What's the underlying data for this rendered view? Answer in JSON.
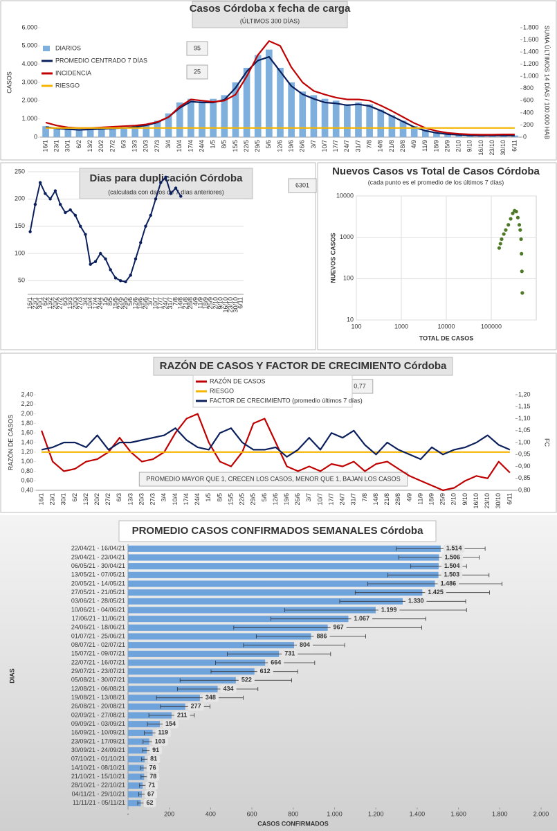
{
  "chart_data": [
    {
      "type": "combo",
      "title": "Casos Córdoba x fecha de carga",
      "subtitle": "(ÚLTIMOS 300 DÍAS)",
      "ylabel": "CASOS",
      "y2label": "SUMA ÚLTIMOS 14 DÍAS / 100.000 HAB",
      "annotations": [
        "95",
        "25"
      ],
      "grid": false,
      "categories": [
        "16/1",
        "23/1",
        "30/1",
        "6/2",
        "13/2",
        "20/2",
        "27/2",
        "6/3",
        "13/3",
        "20/3",
        "27/3",
        "3/4",
        "10/4",
        "17/4",
        "24/4",
        "1/5",
        "8/5",
        "15/5",
        "22/5",
        "29/5",
        "5/6",
        "12/6",
        "19/6",
        "26/6",
        "3/7",
        "10/7",
        "17/7",
        "24/7",
        "31/7",
        "7/8",
        "14/8",
        "21/8",
        "28/8",
        "4/9",
        "11/9",
        "18/9",
        "25/9",
        "2/10",
        "9/10",
        "16/10",
        "23/10",
        "30/10",
        "6/11"
      ],
      "ylim": [
        0,
        6000
      ],
      "yticks": [
        0,
        {
          "value": 1000,
          "label": "1.000"
        },
        {
          "value": 2000,
          "label": "2.000"
        },
        {
          "value": 3000,
          "label": "3.000"
        },
        {
          "value": 4000,
          "label": "4.000"
        },
        {
          "value": 5000,
          "label": "5.000"
        },
        {
          "value": 6000,
          "label": "6.000"
        }
      ],
      "y2lim": [
        0,
        1800
      ],
      "y2ticks": [
        0,
        200,
        400,
        600,
        800,
        {
          "value": 1000,
          "label": "1.000"
        },
        {
          "value": 1200,
          "label": "1.200"
        },
        {
          "value": 1400,
          "label": "1.400"
        },
        {
          "value": 1600,
          "label": "1.600"
        },
        {
          "value": 1800,
          "label": "1.800"
        }
      ],
      "series": [
        {
          "name": "DIARIOS",
          "type": "bar",
          "color": "#7fb0dd",
          "values": [
            600,
            500,
            450,
            400,
            450,
            500,
            500,
            550,
            600,
            700,
            900,
            1300,
            1900,
            2100,
            2000,
            2100,
            2300,
            3000,
            3800,
            4500,
            4800,
            3800,
            3000,
            2500,
            2300,
            2100,
            2000,
            1800,
            1900,
            1800,
            1500,
            1200,
            900,
            600,
            400,
            250,
            180,
            130,
            100,
            90,
            100,
            100,
            90
          ]
        },
        {
          "name": "PROMEDIO CENTRADO 7 DÍAS",
          "type": "line",
          "color": "#0b1f5c",
          "values": [
            550,
            480,
            430,
            400,
            420,
            450,
            480,
            500,
            550,
            650,
            800,
            1100,
            1600,
            1950,
            1900,
            1900,
            2050,
            2700,
            3600,
            4200,
            4400,
            3600,
            2800,
            2350,
            2100,
            1900,
            1850,
            1750,
            1800,
            1700,
            1450,
            1150,
            850,
            550,
            350,
            230,
            160,
            120,
            90,
            80,
            85,
            90,
            80
          ]
        },
        {
          "name": "INCIDENCIA",
          "type": "line",
          "axis": "y2",
          "color": "#c00000",
          "values": [
            240,
            190,
            160,
            150,
            150,
            160,
            170,
            180,
            190,
            210,
            250,
            330,
            500,
            620,
            600,
            580,
            600,
            700,
            1000,
            1350,
            1580,
            1500,
            1150,
            900,
            760,
            700,
            650,
            620,
            620,
            600,
            520,
            430,
            330,
            230,
            150,
            100,
            70,
            55,
            45,
            40,
            40,
            45,
            45
          ]
        },
        {
          "name": "RIESGO",
          "type": "line",
          "axis": "y2",
          "color": "#f4b400",
          "values": [
            150,
            150,
            150,
            150,
            150,
            150,
            150,
            150,
            150,
            150,
            150,
            150,
            150,
            150,
            150,
            150,
            150,
            150,
            150,
            150,
            150,
            150,
            150,
            150,
            150,
            150,
            150,
            150,
            150,
            150,
            150,
            150,
            150,
            150,
            150,
            150,
            150,
            150,
            150,
            150,
            150,
            150,
            150
          ]
        }
      ]
    },
    {
      "type": "line",
      "title": "Dias para duplicación Córdoba",
      "subtitle": "(calculada con datos de 7 días anteriores)",
      "annotations": [
        "6301"
      ],
      "grid": true,
      "categories": [
        "16/1",
        "23/1",
        "30/1",
        "6/2",
        "13/2",
        "20/2",
        "27/2",
        "6/3",
        "13/3",
        "20/3",
        "27/3",
        "3/4",
        "10/4",
        "17/4",
        "24/4",
        "1/5",
        "8/5",
        "15/5",
        "22/5",
        "29/5",
        "5/6",
        "12/6",
        "19/6",
        "26/6",
        "3/7",
        "10/7",
        "17/7",
        "24/7",
        "31/7",
        "7/8",
        "14/8",
        "21/8",
        "28/8",
        "4/9",
        "11/9",
        "18/9",
        "25/9",
        "2/10",
        "9/10",
        "16/10",
        "23/10",
        "30/10",
        "6/11"
      ],
      "ylim": [
        25,
        250
      ],
      "yticks": [
        50,
        100,
        150,
        200,
        250
      ],
      "series": [
        {
          "name": "DÍAS",
          "type": "line",
          "color": "#0b1f5c",
          "values": [
            140,
            190,
            230,
            210,
            200,
            215,
            190,
            175,
            180,
            170,
            150,
            135,
            80,
            85,
            100,
            90,
            70,
            55,
            50,
            48,
            60,
            90,
            120,
            150,
            170,
            200,
            230,
            240,
            210,
            220,
            205,
            null,
            null,
            null,
            null,
            null,
            null,
            null,
            null,
            null,
            null,
            null,
            null
          ]
        }
      ]
    },
    {
      "type": "scatter",
      "title": "Nuevos Casos vs Total de Casos Córdoba",
      "subtitle": "(cada punto es el promedio de los últimos 7 días)",
      "xlabel": "TOTAL DE CASOS",
      "ylabel": "NUEVOS CASOS",
      "log": true,
      "grid": true,
      "color": "#4e7a27",
      "xlim": [
        100,
        1000000
      ],
      "xticks": [
        100,
        1000,
        10000,
        100000
      ],
      "ylim": [
        10,
        10000
      ],
      "yticks": [
        10,
        100,
        1000,
        10000
      ],
      "x": [
        150000,
        160000,
        170000,
        190000,
        210000,
        240000,
        270000,
        300000,
        330000,
        360000,
        390000,
        420000,
        440000,
        460000,
        470000,
        480000,
        490000
      ],
      "values": [
        550,
        700,
        900,
        1200,
        1500,
        2000,
        2800,
        3800,
        4400,
        4200,
        3000,
        2000,
        1500,
        900,
        400,
        150,
        45
      ]
    },
    {
      "type": "line",
      "title": "RAZÓN DE CASOS Y FACTOR DE CRECIMIENTO Córdoba",
      "ylabel": "RAZÓN DE CASOS",
      "y2label": "FC",
      "annotations": [
        "0,77",
        "PROMEDIO MAYOR QUE 1, CRECEN LOS CASOS, MENOR QUE 1, BAJAN LOS CASOS"
      ],
      "grid": false,
      "categories": [
        "16/1",
        "23/1",
        "30/1",
        "6/2",
        "13/2",
        "20/2",
        "27/2",
        "6/3",
        "13/3",
        "20/3",
        "27/3",
        "3/4",
        "10/4",
        "17/4",
        "24/4",
        "1/5",
        "8/5",
        "15/5",
        "22/5",
        "29/5",
        "5/6",
        "12/6",
        "19/6",
        "26/6",
        "3/7",
        "10/7",
        "17/7",
        "24/7",
        "31/7",
        "7/8",
        "14/8",
        "21/8",
        "28/8",
        "4/9",
        "11/9",
        "18/9",
        "25/9",
        "2/10",
        "9/10",
        "16/10",
        "23/10",
        "30/10",
        "6/11"
      ],
      "ylim": [
        0.4,
        2.4
      ],
      "yticks": [
        {
          "value": 0.4,
          "label": "0,40"
        },
        {
          "value": 0.6,
          "label": "0,60"
        },
        {
          "value": 0.8,
          "label": "0,80"
        },
        {
          "value": 1,
          "label": "1,00"
        },
        {
          "value": 1.2,
          "label": "1,20"
        },
        {
          "value": 1.4,
          "label": "1,40"
        },
        {
          "value": 1.6,
          "label": "1,60"
        },
        {
          "value": 1.8,
          "label": "1,80"
        },
        {
          "value": 2,
          "label": "2,00"
        },
        {
          "value": 2.2,
          "label": "2,20"
        },
        {
          "value": 2.4,
          "label": "2,40"
        }
      ],
      "y2lim": [
        0.8,
        1.2
      ],
      "y2ticks": [
        {
          "value": 0.8,
          "label": "0,80"
        },
        {
          "value": 0.85,
          "label": "0,85"
        },
        {
          "value": 0.9,
          "label": "0,90"
        },
        {
          "value": 0.95,
          "label": "0,95"
        },
        {
          "value": 1,
          "label": "1,00"
        },
        {
          "value": 1.05,
          "label": "1,05"
        },
        {
          "value": 1.1,
          "label": "1,10"
        },
        {
          "value": 1.15,
          "label": "1,15"
        },
        {
          "value": 1.2,
          "label": "1,20"
        }
      ],
      "series": [
        {
          "name": "RAZÓN DE CASOS",
          "type": "line",
          "color": "#c00000",
          "values": [
            1.65,
            1.0,
            0.8,
            0.85,
            1.0,
            1.05,
            1.2,
            1.5,
            1.2,
            1.0,
            1.05,
            1.2,
            1.6,
            1.9,
            2.0,
            1.4,
            1.0,
            0.9,
            1.2,
            1.8,
            1.9,
            1.4,
            0.9,
            0.8,
            0.9,
            0.8,
            0.95,
            0.9,
            1.0,
            0.8,
            0.95,
            1.0,
            0.85,
            0.7,
            0.6,
            0.5,
            0.4,
            0.45,
            0.6,
            0.7,
            0.65,
            1.0,
            0.77
          ]
        },
        {
          "name": "RIESGO",
          "type": "line",
          "color": "#f4b400",
          "values": [
            1.2,
            1.2,
            1.2,
            1.2,
            1.2,
            1.2,
            1.2,
            1.2,
            1.2,
            1.2,
            1.2,
            1.2,
            1.2,
            1.2,
            1.2,
            1.2,
            1.2,
            1.2,
            1.2,
            1.2,
            1.2,
            1.2,
            1.2,
            1.2,
            1.2,
            1.2,
            1.2,
            1.2,
            1.2,
            1.2,
            1.2,
            1.2,
            1.2,
            1.2,
            1.2,
            1.2,
            1.2,
            1.2,
            1.2,
            1.2,
            1.2,
            1.2,
            1.2
          ]
        },
        {
          "name": "FACTOR DE CRECIMIENTO (promedio últimos 7 días)",
          "type": "line",
          "axis": "y2",
          "color": "#0b1f5c",
          "values": [
            0.97,
            0.98,
            1.0,
            1.0,
            0.98,
            1.03,
            0.97,
            1.0,
            1.0,
            1.01,
            1.02,
            1.03,
            1.06,
            1.01,
            0.98,
            0.97,
            1.04,
            1.06,
            1.0,
            0.97,
            0.97,
            0.98,
            0.94,
            0.97,
            1.02,
            0.97,
            1.04,
            1.02,
            1.05,
            0.99,
            0.95,
            1.0,
            0.97,
            0.95,
            0.93,
            0.98,
            0.95,
            0.97,
            0.98,
            1.0,
            1.03,
            0.99,
            0.97
          ]
        }
      ]
    },
    {
      "type": "hbar",
      "title": "PROMEDIO CASOS CONFIRMADOS SEMANALES Córdoba",
      "xlabel": "CASOS CONFIRMADOS",
      "ylabel": "DIAS",
      "color": "#6fa3dc",
      "categories": [
        "22/04/21 - 16/04/21",
        "29/04/21 - 23/04/21",
        "06/05/21 - 30/04/21",
        "13/05/21 - 07/05/21",
        "20/05/21 - 14/05/21",
        "27/05/21 - 21/05/21",
        "03/06/21 - 28/05/21",
        "10/06/21 - 04/06/21",
        "17/06/21 - 11/06/21",
        "24/06/21 - 18/06/21",
        "01/07/21 - 25/06/21",
        "08/07/21 - 02/07/21",
        "15/07/21 - 09/07/21",
        "22/07/21 - 16/07/21",
        "29/07/21 - 23/07/21",
        "05/08/21 - 30/07/21",
        "12/08/21 - 06/08/21",
        "19/08/21 - 13/08/21",
        "26/08/21 - 20/08/21",
        "02/09/21 - 27/08/21",
        "09/09/21 - 03/09/21",
        "16/09/21 - 10/09/21",
        "23/09/21 - 17/09/21",
        "30/09/21 - 24/09/21",
        "07/10/21 - 01/10/21",
        "14/10/21 - 08/10/21",
        "21/10/21 - 15/10/21",
        "28/10/21 - 22/10/21",
        "04/11/21 - 29/10/21",
        "11/11/21 - 05/11/21"
      ],
      "values": [
        1514,
        1506,
        1504,
        1503,
        1486,
        1425,
        1330,
        1199,
        1067,
        967,
        886,
        804,
        731,
        664,
        612,
        522,
        434,
        348,
        277,
        211,
        154,
        119,
        103,
        91,
        81,
        76,
        78,
        71,
        67,
        62
      ],
      "value_labels": [
        "1.514",
        "1.506",
        "1.504",
        "1.503",
        "1.486",
        "1.425",
        "1.330",
        "1.199",
        "1.067",
        "967",
        "886",
        "804",
        "731",
        "664",
        "612",
        "522",
        "434",
        "348",
        "277",
        "211",
        "154",
        "119",
        "103",
        "91",
        "81",
        "76",
        "78",
        "71",
        "67",
        "62"
      ],
      "errors": [
        215,
        195,
        135,
        245,
        325,
        325,
        305,
        440,
        375,
        455,
        265,
        245,
        250,
        240,
        210,
        270,
        195,
        210,
        120,
        110,
        60,
        40,
        30,
        20,
        15,
        15,
        15,
        15,
        15,
        15
      ],
      "xlim": [
        0,
        2000
      ],
      "xticks": [
        {
          "value": 0,
          "label": "-"
        },
        200,
        400,
        600,
        800,
        {
          "value": 1000,
          "label": "1.000"
        },
        {
          "value": 1200,
          "label": "1.200"
        },
        {
          "value": 1400,
          "label": "1.400"
        },
        {
          "value": 1600,
          "label": "1.600"
        },
        {
          "value": 1800,
          "label": "1.800"
        },
        {
          "value": 2000,
          "label": "2.000"
        }
      ]
    }
  ]
}
